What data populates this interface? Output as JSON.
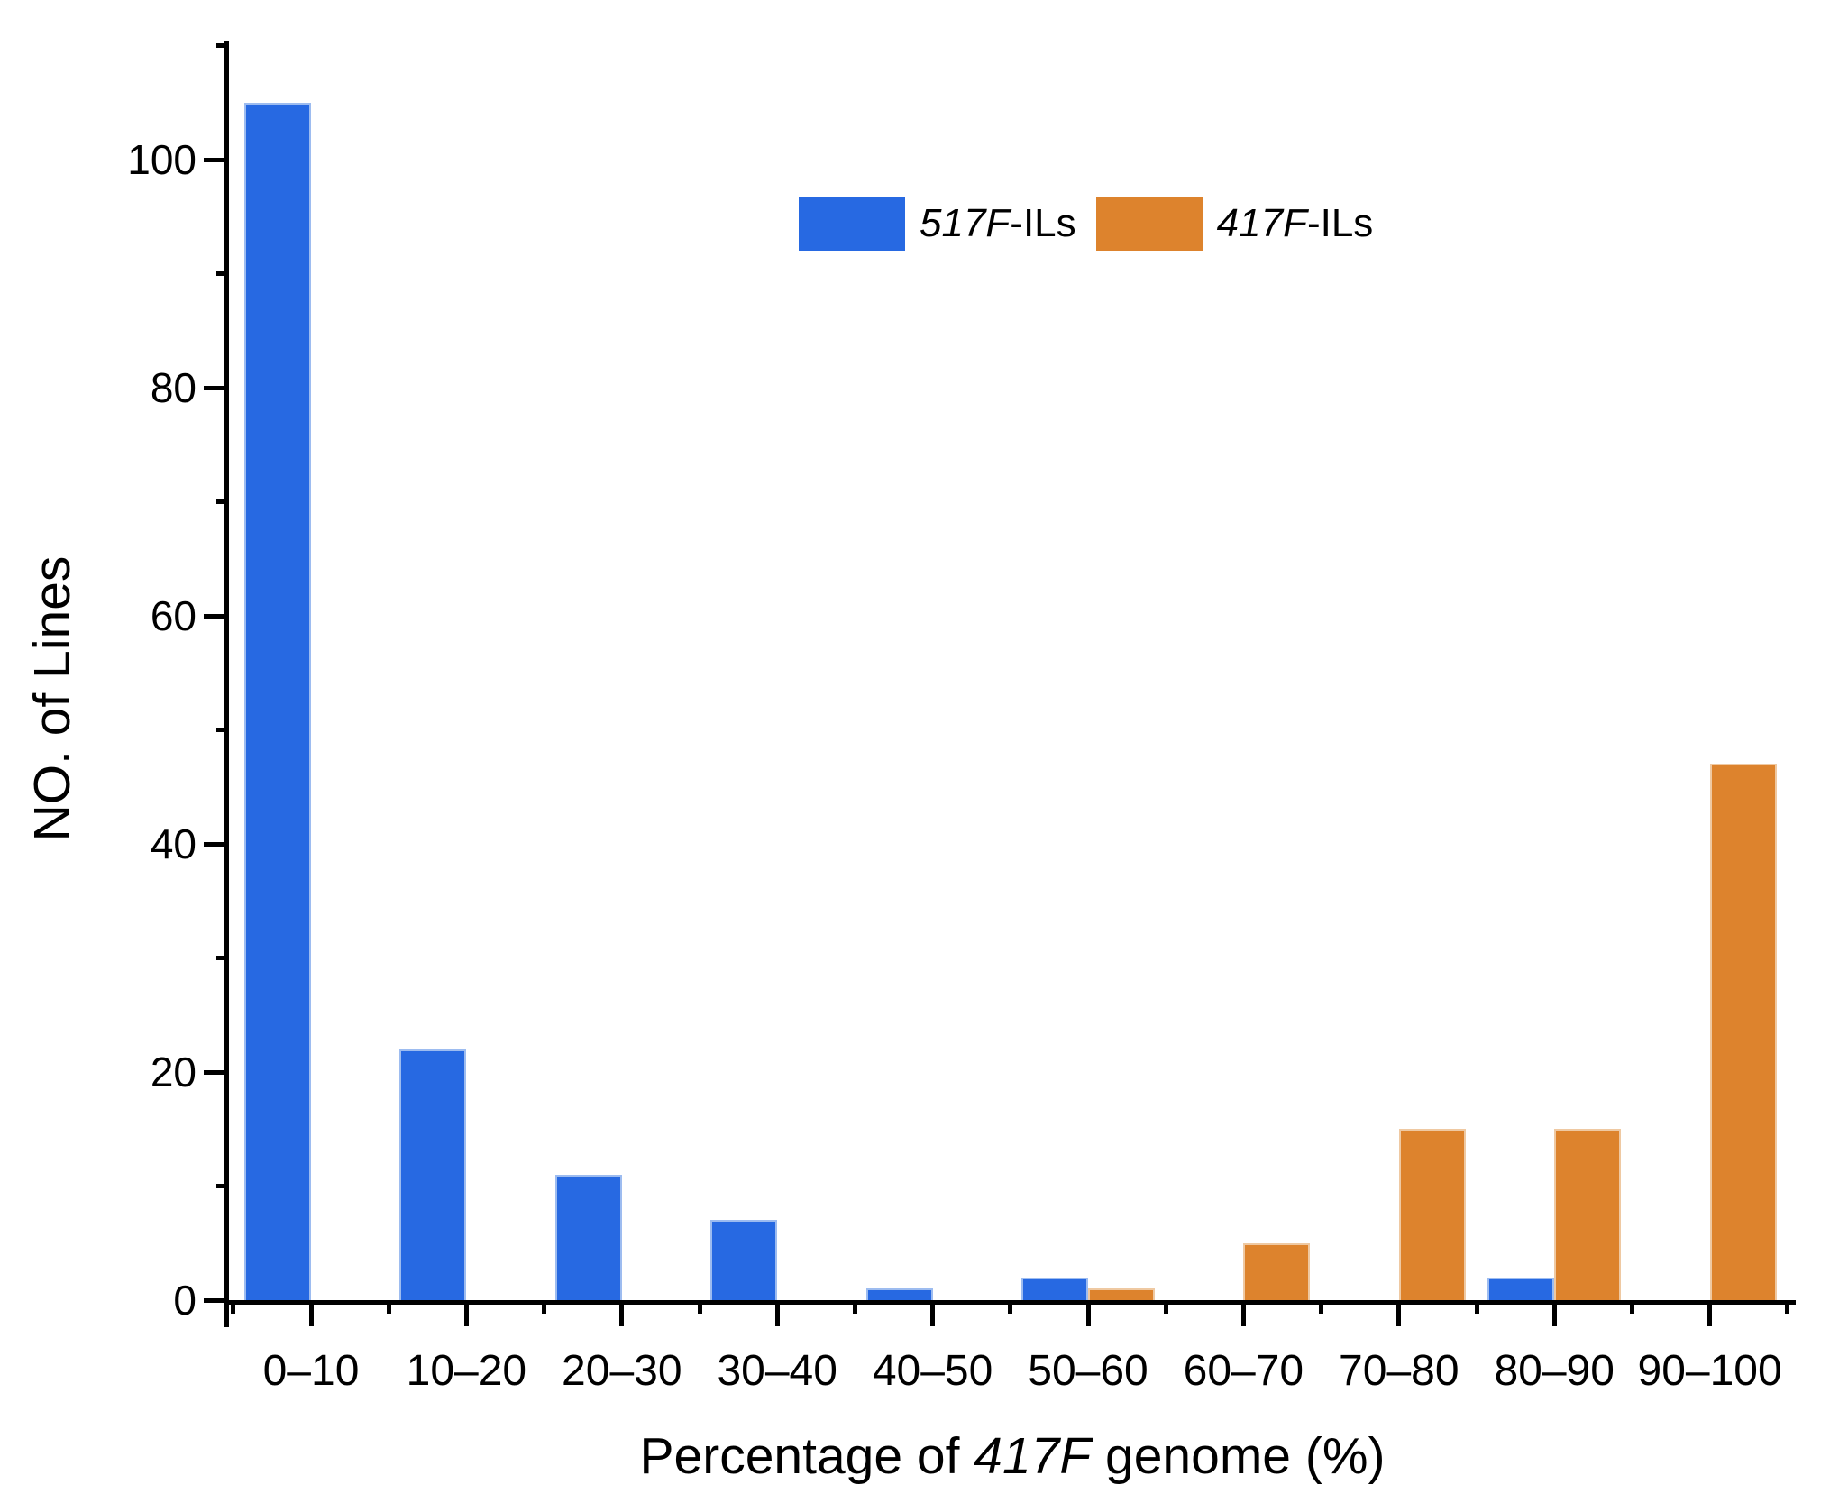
{
  "chart_data": {
    "type": "bar",
    "title": "",
    "categories": [
      "0–10",
      "10–20",
      "20–30",
      "30–40",
      "40–50",
      "50–60",
      "60–70",
      "70–80",
      "80–90",
      "90–100"
    ],
    "series": [
      {
        "name": "517F-ILs",
        "legend": {
          "italic": "517F",
          "rest": "-ILs"
        },
        "color": "#2769e2",
        "border_color": "#9dbcf0",
        "values": [
          105,
          22,
          11,
          7,
          1,
          2,
          0,
          0,
          2,
          0
        ]
      },
      {
        "name": "417F-ILs",
        "legend": {
          "italic": "417F",
          "rest": "-ILs"
        },
        "color": "#dd832d",
        "border_color": "#efc9a2",
        "values": [
          0,
          0,
          0,
          0,
          0,
          1,
          5,
          15,
          15,
          47
        ]
      }
    ],
    "xlabel": {
      "pre": "Percentage of ",
      "italic": "417F",
      "post": " genome (%)"
    },
    "ylabel": "NO. of Lines",
    "yticks": [
      0,
      20,
      40,
      60,
      80,
      100
    ],
    "y_minor_step": 10,
    "ylim": [
      0,
      110
    ],
    "axis_color": "#000000",
    "grid": false,
    "legend_position": "top-center"
  }
}
